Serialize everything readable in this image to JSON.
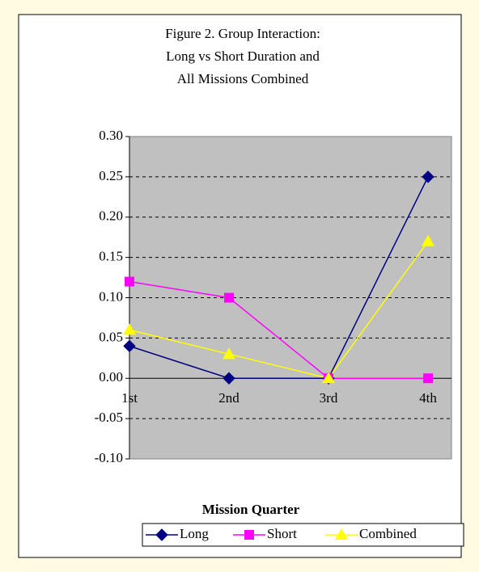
{
  "chart_data": {
    "type": "line",
    "title": [
      "Figure 2. Group Interaction:",
      "Long vs Short Duration and",
      "All Missions Combined"
    ],
    "x_label": "Mission Quarter",
    "categories": [
      "1st",
      "2nd",
      "3rd",
      "4th"
    ],
    "series": [
      {
        "name": "Long",
        "color": "#000080",
        "marker": "diamond",
        "values": [
          0.04,
          0,
          0,
          0.25
        ]
      },
      {
        "name": "Short",
        "color": "#ff00ff",
        "marker": "square",
        "values": [
          0.12,
          0.1,
          0,
          0
        ]
      },
      {
        "name": "Combined",
        "color": "#ffff00",
        "marker": "triangle",
        "values": [
          0.06,
          0.03,
          0,
          0.17
        ]
      }
    ],
    "ylim": [
      -0.1,
      0.3
    ],
    "yticks": [
      {
        "value": -0.1,
        "label": "-0.10"
      },
      {
        "value": -0.05,
        "label": "-0.05"
      },
      {
        "value": 0,
        "label": "0.00"
      },
      {
        "value": 0.05,
        "label": "0.05"
      },
      {
        "value": 0.1,
        "label": "0.10"
      },
      {
        "value": 0.15,
        "label": "0.15"
      },
      {
        "value": 0.2,
        "label": "0.20"
      },
      {
        "value": 0.25,
        "label": "0.25"
      },
      {
        "value": 0.3,
        "label": "0.30"
      }
    ],
    "grid": true,
    "plot_background": "#c0c0c0",
    "legend": "bottom"
  }
}
